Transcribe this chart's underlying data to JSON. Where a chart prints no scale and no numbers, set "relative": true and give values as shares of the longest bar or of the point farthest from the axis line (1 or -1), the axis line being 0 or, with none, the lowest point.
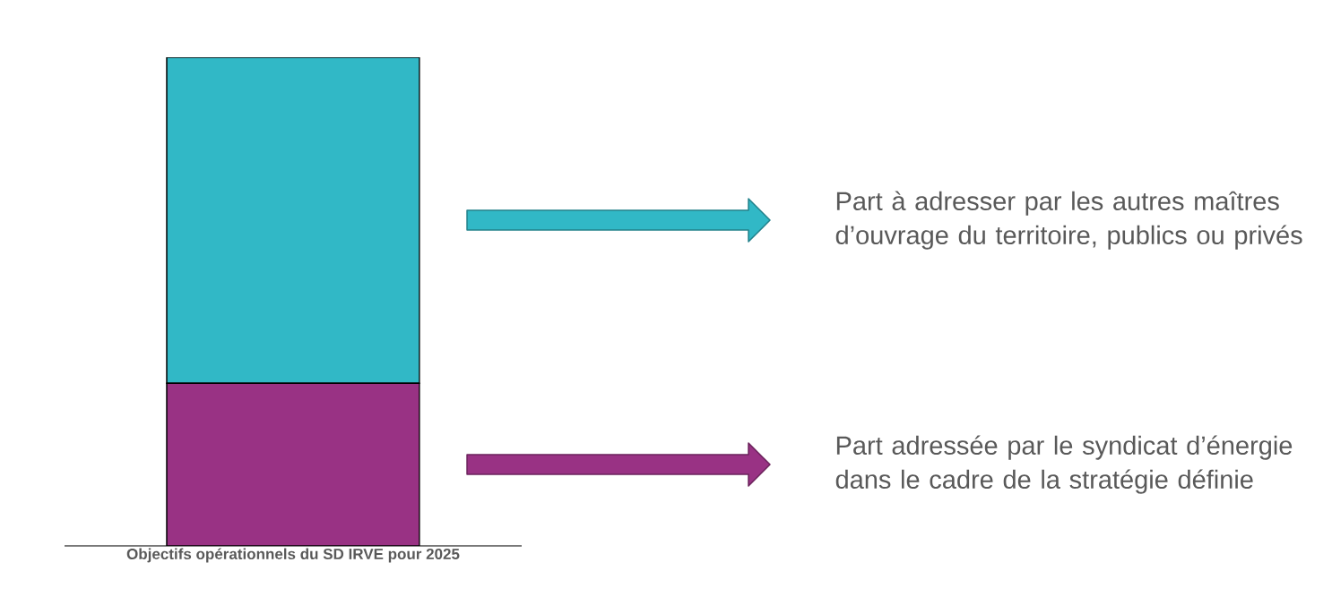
{
  "chart_data": {
    "type": "bar",
    "relative": true,
    "stacked": true,
    "categories": [
      null
    ],
    "xlabel": "Objectifs opérationnels du SD IRVE pour 2025",
    "series": [
      {
        "name": "Part adressée par le syndicat d’énergie dans le cadre de la stratégie définie",
        "color": "#993284",
        "values": [
          0.333
        ]
      },
      {
        "name": "Part à adresser par les autres maîtres d’ouvrage du territoire, publics ou privés",
        "color": "#31b8c6",
        "values": [
          0.667
        ]
      }
    ]
  }
}
